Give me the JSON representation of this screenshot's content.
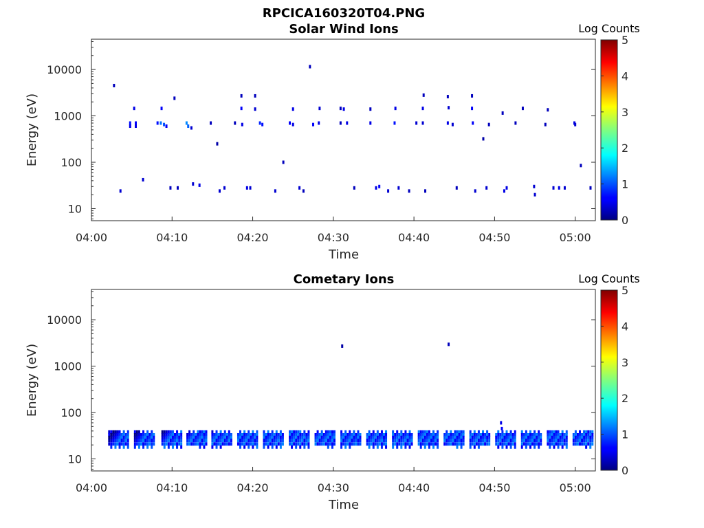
{
  "figure_title": "RPCICA160320T04.PNG",
  "colorbar": {
    "label": "Log Counts",
    "ticks": [
      "0",
      "1",
      "2",
      "3",
      "4",
      "5"
    ],
    "range": [
      0,
      5
    ],
    "colormap": "jet"
  },
  "chart_data": [
    {
      "type": "heatmap",
      "title": "Solar Wind Ions",
      "xlabel": "Time",
      "ylabel": "Energy (eV)",
      "x_ticks": [
        "04:00",
        "04:10",
        "04:20",
        "04:30",
        "04:40",
        "04:50",
        "05:00"
      ],
      "y_ticks": [
        "10",
        "100",
        "1000",
        "10000"
      ],
      "y_scale": "log",
      "xlim_minutes": [
        0,
        62.5
      ],
      "ylim": [
        5.5,
        45000
      ],
      "value_label": "Log Counts",
      "cells": [
        [
          2.8,
          4500,
          0.3
        ],
        [
          3.6,
          24,
          0.4
        ],
        [
          5.3,
          1450,
          0.5
        ],
        [
          4.8,
          700,
          0.7
        ],
        [
          5.5,
          700,
          0.6
        ],
        [
          4.8,
          600,
          0.5
        ],
        [
          5.5,
          600,
          0.5
        ],
        [
          6.4,
          42,
          0.4
        ],
        [
          8.7,
          1450,
          0.6
        ],
        [
          8.6,
          700,
          1.2
        ],
        [
          9.0,
          650,
          1.0
        ],
        [
          8.2,
          700,
          0.7
        ],
        [
          9.3,
          600,
          0.6
        ],
        [
          9.8,
          28,
          0.3
        ],
        [
          10.3,
          2400,
          0.3
        ],
        [
          10.7,
          28,
          0.3
        ],
        [
          11.8,
          700,
          1.3
        ],
        [
          12.0,
          600,
          1.1
        ],
        [
          12.4,
          550,
          0.4
        ],
        [
          12.6,
          34,
          0.4
        ],
        [
          13.4,
          32,
          0.5
        ],
        [
          14.8,
          700,
          0.3
        ],
        [
          15.6,
          250,
          0.2
        ],
        [
          15.9,
          24,
          0.4
        ],
        [
          16.5,
          28,
          0.4
        ],
        [
          17.8,
          700,
          0.3
        ],
        [
          18.6,
          2700,
          0.3
        ],
        [
          18.6,
          1450,
          0.6
        ],
        [
          18.7,
          650,
          0.5
        ],
        [
          19.3,
          28,
          0.5
        ],
        [
          19.7,
          28,
          0.4
        ],
        [
          20.3,
          2700,
          0.3
        ],
        [
          20.3,
          1400,
          0.4
        ],
        [
          20.9,
          700,
          0.8
        ],
        [
          21.2,
          650,
          0.7
        ],
        [
          22.8,
          24,
          0.4
        ],
        [
          23.8,
          100,
          0.3
        ],
        [
          24.6,
          700,
          0.6
        ],
        [
          25.0,
          650,
          0.5
        ],
        [
          25.0,
          1400,
          0.5
        ],
        [
          25.8,
          28,
          0.4
        ],
        [
          26.3,
          24,
          0.3
        ],
        [
          27.1,
          11500,
          0.3
        ],
        [
          27.5,
          650,
          0.6
        ],
        [
          28.2,
          700,
          0.5
        ],
        [
          28.3,
          1450,
          0.4
        ],
        [
          30.9,
          1450,
          0.3
        ],
        [
          30.9,
          700,
          0.3
        ],
        [
          31.3,
          1400,
          0.5
        ],
        [
          31.7,
          700,
          0.5
        ],
        [
          32.6,
          28,
          0.3
        ],
        [
          34.6,
          1400,
          0.3
        ],
        [
          34.6,
          700,
          0.5
        ],
        [
          35.3,
          28,
          0.5
        ],
        [
          35.7,
          30,
          0.6
        ],
        [
          36.8,
          24,
          0.4
        ],
        [
          37.6,
          700,
          0.7
        ],
        [
          37.7,
          1450,
          0.5
        ],
        [
          38.1,
          28,
          0.4
        ],
        [
          39.4,
          24,
          0.3
        ],
        [
          40.3,
          700,
          0.4
        ],
        [
          41.1,
          1450,
          0.5
        ],
        [
          41.1,
          700,
          0.4
        ],
        [
          41.2,
          2800,
          0.3
        ],
        [
          41.4,
          24,
          0.3
        ],
        [
          44.2,
          2600,
          0.3
        ],
        [
          44.3,
          1500,
          0.4
        ],
        [
          44.2,
          700,
          0.5
        ],
        [
          44.8,
          650,
          0.4
        ],
        [
          45.3,
          28,
          0.3
        ],
        [
          47.2,
          2700,
          0.3
        ],
        [
          47.2,
          1450,
          0.6
        ],
        [
          47.3,
          700,
          0.6
        ],
        [
          47.6,
          24,
          0.4
        ],
        [
          48.6,
          320,
          0.2
        ],
        [
          49.0,
          28,
          0.4
        ],
        [
          49.3,
          650,
          0.3
        ],
        [
          51.0,
          1150,
          0.3
        ],
        [
          51.2,
          24,
          0.5
        ],
        [
          51.5,
          28,
          0.5
        ],
        [
          52.6,
          700,
          0.3
        ],
        [
          53.5,
          1450,
          0.3
        ],
        [
          54.9,
          30,
          0.4
        ],
        [
          55.0,
          20,
          0.4
        ],
        [
          56.3,
          650,
          0.3
        ],
        [
          56.6,
          1350,
          0.3
        ],
        [
          57.3,
          28,
          0.4
        ],
        [
          58.0,
          28,
          0.5
        ],
        [
          58.7,
          28,
          0.4
        ],
        [
          59.9,
          700,
          0.5
        ],
        [
          60.0,
          650,
          0.4
        ],
        [
          60.7,
          85,
          0.3
        ],
        [
          61.9,
          28,
          0.3
        ]
      ]
    },
    {
      "type": "heatmap",
      "title": "Cometary Ions",
      "xlabel": "Time",
      "ylabel": "Energy (eV)",
      "x_ticks": [
        "04:00",
        "04:10",
        "04:20",
        "04:30",
        "04:40",
        "04:50",
        "05:00"
      ],
      "y_ticks": [
        "10",
        "100",
        "1000",
        "10000"
      ],
      "y_scale": "log",
      "xlim_minutes": [
        0,
        62.5
      ],
      "ylim": [
        5.5,
        45000
      ],
      "value_label": "Log Counts",
      "bursts_minutes": [
        3.4,
        6.6,
        10.0,
        13.1,
        16.2,
        19.4,
        22.6,
        25.8,
        29.0,
        32.2,
        35.4,
        38.6,
        41.8,
        45.0,
        48.2,
        51.4,
        54.6,
        57.8,
        61.0
      ],
      "cells": [
        [
          31.1,
          2700,
          0.2
        ],
        [
          44.3,
          2950,
          0.3
        ],
        [
          50.8,
          60,
          0.5
        ],
        [
          50.9,
          45,
          0.6
        ]
      ]
    }
  ]
}
